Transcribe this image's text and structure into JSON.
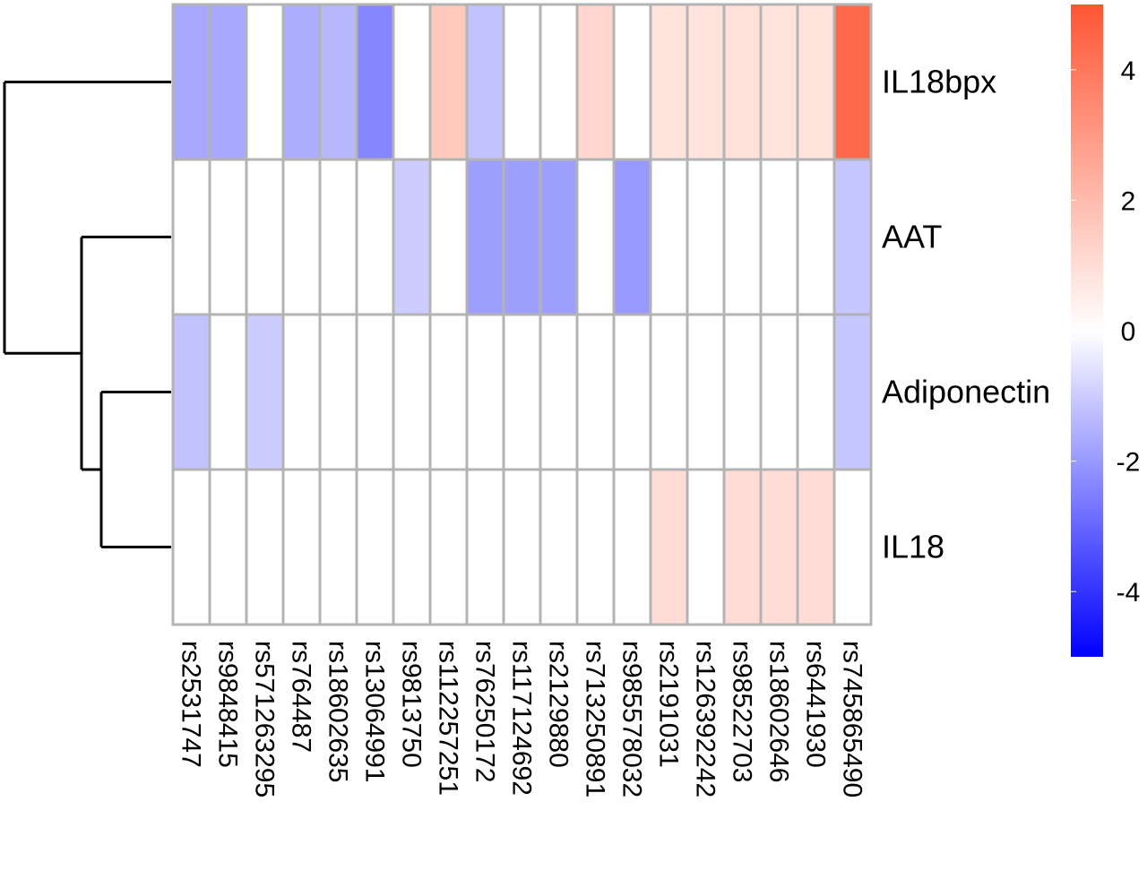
{
  "chart_data": {
    "type": "heatmap",
    "rows": [
      "IL18bpx",
      "AAT",
      "Adiponectin",
      "IL18"
    ],
    "columns": [
      "rs2531747",
      "rs9848415",
      "rs571263295",
      "rs764487",
      "rs18602635",
      "rs13064991",
      "rs9813750",
      "rs112257251",
      "rs76250172",
      "rs117124692",
      "rs2129880",
      "rs713250891",
      "rs985578032",
      "rs2191031",
      "rs126392242",
      "rs98522703",
      "rs18602646",
      "rs6441930",
      "rs745865490"
    ],
    "values": [
      [
        -1.7,
        -1.7,
        0,
        -1.6,
        -1.4,
        -2.4,
        0,
        1.6,
        -1.2,
        0,
        0,
        1.2,
        0,
        0.8,
        0.8,
        0.9,
        0.8,
        0.8,
        4.4
      ],
      [
        0,
        0,
        0,
        0,
        0,
        0,
        -1.0,
        0,
        -1.9,
        -1.9,
        -1.9,
        0,
        -2.0,
        0,
        0,
        0,
        0,
        0,
        -1.1
      ],
      [
        -1.2,
        0,
        -1.0,
        0,
        0,
        0,
        0,
        0,
        0,
        0,
        0,
        0,
        0,
        0,
        0,
        0,
        0,
        0,
        -1.1
      ],
      [
        0,
        0,
        0,
        0,
        0,
        0,
        0,
        0,
        0,
        0,
        0,
        0,
        0,
        1.0,
        0,
        1.0,
        1.0,
        1.0,
        0
      ]
    ],
    "color_scale": {
      "min": -5,
      "max": 5,
      "low_color": "#0000ff",
      "mid_color": "#ffffff",
      "high_color": "#ff5533",
      "cell_border_color": "#b3b3b3"
    },
    "legend": {
      "ticks": [
        4,
        2,
        0,
        -2,
        -4
      ],
      "tick_labels": [
        "4",
        "2",
        "0",
        "-2",
        "-4"
      ],
      "placement": "right"
    },
    "row_dendrogram": "left",
    "row_dendrogram_tree": [
      [
        [
          "IL18bpx"
        ]
      ],
      [
        [
          "AAT"
        ],
        [
          [
            "Adiponectin"
          ],
          [
            "IL18"
          ]
        ]
      ]
    ]
  }
}
